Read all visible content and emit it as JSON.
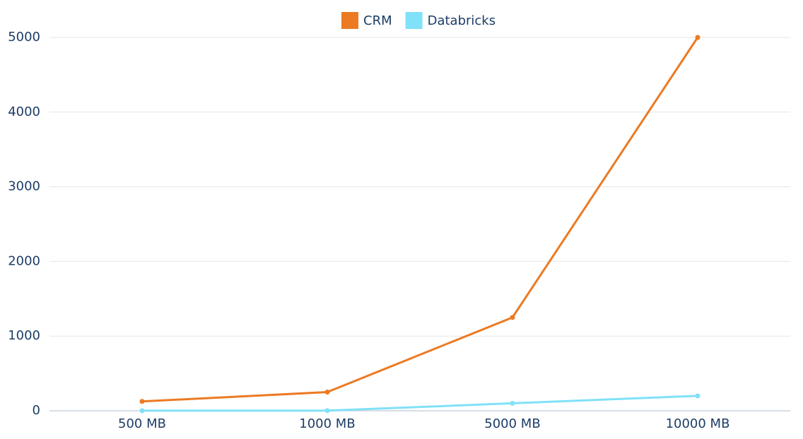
{
  "chart_data": {
    "type": "line",
    "categories": [
      "500 MB",
      "1000 MB",
      "5000 MB",
      "10000 MB"
    ],
    "series": [
      {
        "name": "CRM",
        "color": "#ec7a23",
        "values": [
          125,
          250,
          1250,
          5000
        ]
      },
      {
        "name": "Databricks",
        "color": "#80e1f8",
        "values": [
          1,
          2,
          100,
          200
        ]
      }
    ],
    "ylim": [
      0,
      5000
    ],
    "yticks": [
      0,
      1000,
      2000,
      3000,
      4000,
      5000
    ],
    "grid": true,
    "legend": "top"
  }
}
